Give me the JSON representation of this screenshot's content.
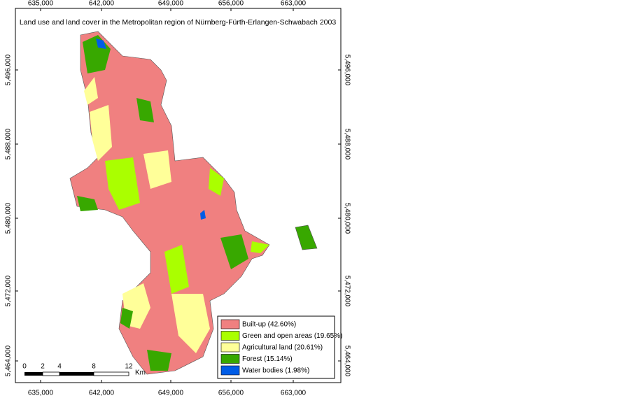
{
  "title": "Land use and land cover in  the Metropolitan region of Nürnberg-Fürth-Erlangen-Schwabach 2003",
  "x_ticks_top": [
    "635,000",
    "642,000",
    "649,000",
    "656,000",
    "663,000"
  ],
  "x_ticks_bottom": [
    "635,000",
    "642,000",
    "649,000",
    "656,000",
    "663,000"
  ],
  "y_ticks_left": [
    "5,496,000",
    "5,488,000",
    "5,480,000",
    "5,472,000",
    "5,464,000"
  ],
  "y_ticks_right": [
    "5,496,000",
    "5,488,000",
    "5,480,000",
    "5,472,000",
    "5,464,000"
  ],
  "legend": [
    {
      "label": "Built-up (42.60%)",
      "color": "#f08080"
    },
    {
      "label": "Green and open areas (19.65%)",
      "color": "#aaff00"
    },
    {
      "label": "Agricultural land (20.61%)",
      "color": "#ffff99"
    },
    {
      "label": "Forest (15.14%)",
      "color": "#38a800"
    },
    {
      "label": "Water bodies (1.98%)",
      "color": "#005ce6"
    }
  ],
  "scale_bar": {
    "labels": [
      "0",
      "2",
      "4",
      "8",
      "12"
    ],
    "unit": "Km"
  }
}
